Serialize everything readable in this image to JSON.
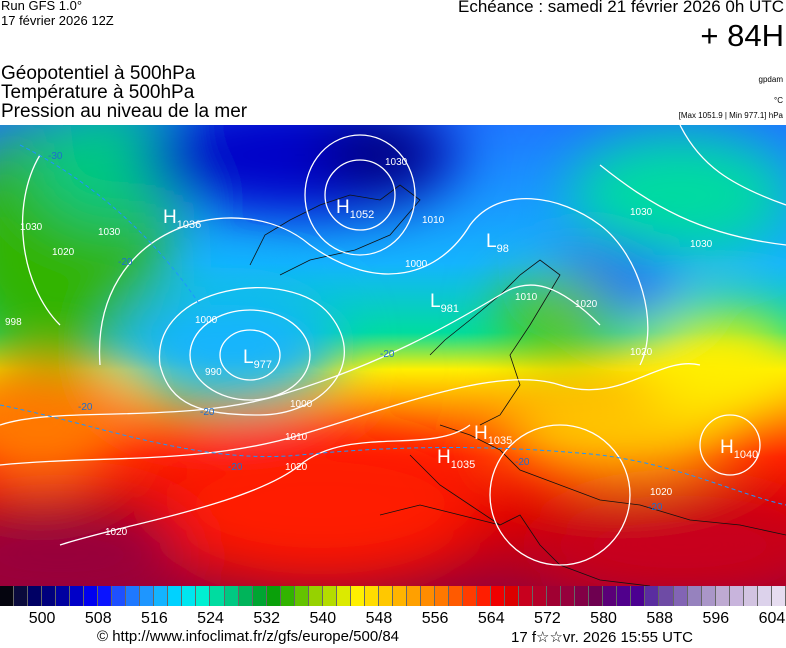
{
  "header": {
    "run": "Run GFS 1.0°",
    "run_date": "17 février 2026 12Z",
    "echeance": "Echéance : samedi 21 février 2026 0h UTC",
    "lead": "+ 84H",
    "titles": [
      "Géopotentiel à 500hPa",
      "Température à 500hPa",
      "Pression au niveau de la mer"
    ],
    "units": [
      "gpdam",
      "°C",
      "[Max 1051.9 | Min 977.1] hPa"
    ]
  },
  "map": {
    "centers": [
      {
        "type": "H",
        "value": "1052"
      },
      {
        "type": "H",
        "value": "1036"
      },
      {
        "type": "L",
        "value": "977"
      },
      {
        "type": "L",
        "value": "981"
      },
      {
        "type": "L",
        "value": "98"
      },
      {
        "type": "H",
        "value": "1035"
      },
      {
        "type": "H",
        "value": "1035"
      },
      {
        "type": "H",
        "value": "1040"
      }
    ],
    "isobar_labels": [
      "1030",
      "1010",
      "1000",
      "990",
      "1000",
      "1010",
      "1020",
      "1020",
      "1030",
      "1020",
      "1010",
      "1000",
      "1020",
      "1030",
      "1030",
      "1020",
      "1020",
      "1030",
      "998"
    ],
    "temp_labels": [
      "-30",
      "-20",
      "-20",
      "-20",
      "-20",
      "-20",
      "-20",
      "-20"
    ]
  },
  "colorbar": {
    "colors": [
      "#05050f",
      "#0a0a3c",
      "#000064",
      "#00007d",
      "#0000a0",
      "#0000c8",
      "#0000f0",
      "#0a14ff",
      "#1e50ff",
      "#1e78ff",
      "#1e96ff",
      "#14b4ff",
      "#00d2ff",
      "#00e6f0",
      "#00f0d2",
      "#00dca0",
      "#00c882",
      "#00b45a",
      "#00a532",
      "#0aa00a",
      "#32b400",
      "#64c300",
      "#96d200",
      "#b4dc00",
      "#dcea00",
      "#fff000",
      "#ffdc00",
      "#ffc800",
      "#ffb400",
      "#ffa000",
      "#ff8c00",
      "#ff7800",
      "#ff5a00",
      "#ff3c00",
      "#ff1e00",
      "#f00000",
      "#dc0000",
      "#c8001e",
      "#b40028",
      "#a00032",
      "#96003c",
      "#820046",
      "#6e0050",
      "#5a0078",
      "#50008c",
      "#4b0091",
      "#5a2da0",
      "#6e4ba5",
      "#8264b4",
      "#9682be",
      "#aa96c8",
      "#beaad2",
      "#c8b4dc",
      "#d2c3e1",
      "#dcd2eb",
      "#e6dcf0"
    ],
    "min": 494,
    "step": 2,
    "ticks": [
      "500",
      "508",
      "516",
      "524",
      "532",
      "540",
      "548",
      "556",
      "564",
      "572",
      "580",
      "588",
      "596",
      "604"
    ]
  },
  "footer": {
    "copyright": "© http://www.infoclimat.fr/z/gfs/europe/500/84",
    "generated": "17 f☆☆vr. 2026 15:55 UTC"
  }
}
